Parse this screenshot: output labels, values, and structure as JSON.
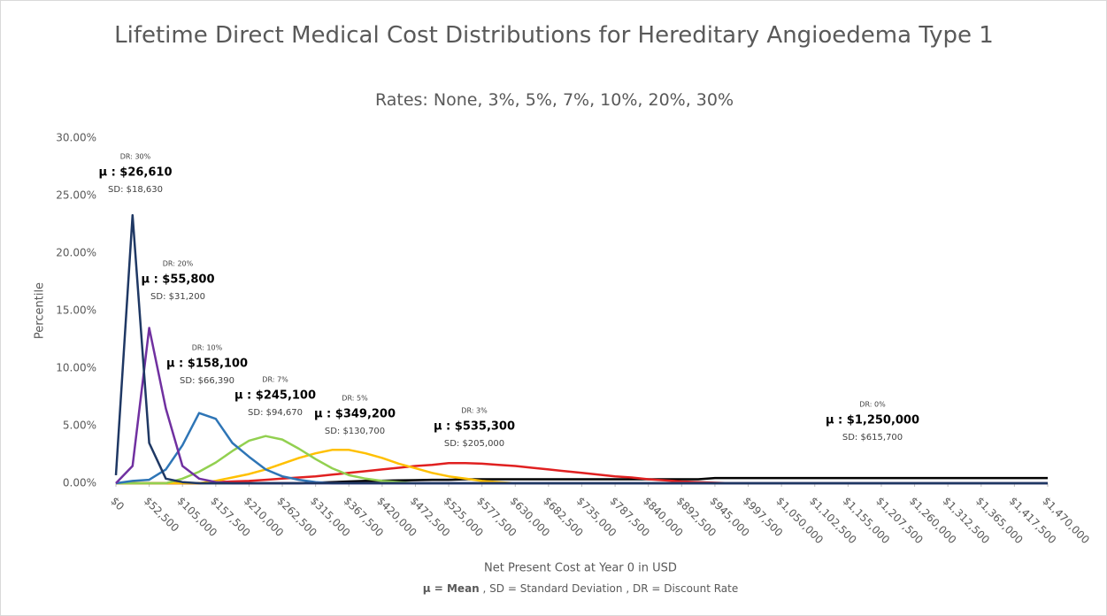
{
  "chart_data": {
    "type": "line",
    "title": "Lifetime Direct Medical Cost Distributions for Hereditary Angioedema Type 1",
    "subtitle": "Rates: None, 3%, 5%, 7%, 10%, 20%, 30%",
    "x_label": "Net Present Cost at Year 0 in USD",
    "y_label": "Percentile",
    "note": [
      "μ = Mean",
      " , SD = Standard Deviation , DR = Discount Rate"
    ],
    "x": [
      0,
      26250,
      52500,
      78750,
      105000,
      131250,
      157500,
      183750,
      210000,
      236250,
      262500,
      288750,
      315000,
      341250,
      367500,
      393750,
      420000,
      446250,
      472500,
      498750,
      525000,
      551250,
      577500,
      603750,
      630000,
      656250,
      682500,
      708750,
      735000,
      761250,
      787500,
      813750,
      840000,
      866250,
      892500,
      918750,
      945000,
      971250,
      997500,
      1023750,
      1050000,
      1076250,
      1102500,
      1128750,
      1155000,
      1181250,
      1207500,
      1233750,
      1260000,
      1286250,
      1312500,
      1338750,
      1365000,
      1391250,
      1417500,
      1443750,
      1470000
    ],
    "xlim": [
      0,
      1470000
    ],
    "xticks": [
      {
        "value": 0,
        "label": "$0"
      },
      {
        "value": 52500,
        "label": "$52,500"
      },
      {
        "value": 105000,
        "label": "$105,000"
      },
      {
        "value": 157500,
        "label": "$157,500"
      },
      {
        "value": 210000,
        "label": "$210,000"
      },
      {
        "value": 262500,
        "label": "$262,500"
      },
      {
        "value": 315000,
        "label": "$315,000"
      },
      {
        "value": 367500,
        "label": "$367,500"
      },
      {
        "value": 420000,
        "label": "$420,000"
      },
      {
        "value": 472500,
        "label": "$472,500"
      },
      {
        "value": 525000,
        "label": "$525,000"
      },
      {
        "value": 577500,
        "label": "$577,500"
      },
      {
        "value": 630000,
        "label": "$630,000"
      },
      {
        "value": 682500,
        "label": "$682,500"
      },
      {
        "value": 735000,
        "label": "$735,000"
      },
      {
        "value": 787500,
        "label": "$787,500"
      },
      {
        "value": 840000,
        "label": "$840,000"
      },
      {
        "value": 892500,
        "label": "$892,500"
      },
      {
        "value": 945000,
        "label": "$945,000"
      },
      {
        "value": 997500,
        "label": "$997,500"
      },
      {
        "value": 1050000,
        "label": "$1,050,000"
      },
      {
        "value": 1102500,
        "label": "$1,102,500"
      },
      {
        "value": 1155000,
        "label": "$1,155,000"
      },
      {
        "value": 1207500,
        "label": "$1,207,500"
      },
      {
        "value": 1260000,
        "label": "$1,260,000"
      },
      {
        "value": 1312500,
        "label": "$1,312,500"
      },
      {
        "value": 1365000,
        "label": "$1,365,000"
      },
      {
        "value": 1417500,
        "label": "$1,417,500"
      },
      {
        "value": 1470000,
        "label": "$1,470,000"
      }
    ],
    "ylim": [
      0,
      30
    ],
    "yticks": [
      {
        "value": 0,
        "label": "0.00%"
      },
      {
        "value": 5,
        "label": "5.00%"
      },
      {
        "value": 10,
        "label": "10.00%"
      },
      {
        "value": 15,
        "label": "15.00%"
      },
      {
        "value": 20,
        "label": "20.00%"
      },
      {
        "value": 25,
        "label": "25.00%"
      },
      {
        "value": 30,
        "label": "30.00%"
      }
    ],
    "grid": false,
    "series": [
      {
        "name": "DR: 30%",
        "mean_label": "μ : $26,610",
        "sd_label": "SD: $18,630",
        "color": "#1f3864",
        "values": [
          0.7,
          23.3,
          3.5,
          0.4,
          0.1,
          0,
          0,
          0,
          0,
          0,
          0,
          0,
          0,
          0,
          0,
          0,
          0,
          0,
          0,
          0,
          0,
          0,
          0,
          0,
          0,
          0,
          0,
          0,
          0,
          0,
          0,
          0,
          0,
          0,
          0,
          0,
          0,
          0,
          0,
          0,
          0,
          0,
          0,
          0,
          0,
          0,
          0,
          0,
          0,
          0,
          0,
          0,
          0,
          0,
          0,
          0,
          0
        ]
      },
      {
        "name": "DR: 20%",
        "mean_label": "μ : $55,800",
        "sd_label": "SD: $31,200",
        "color": "#7030a0",
        "values": [
          0,
          1.5,
          13.5,
          6.5,
          1.5,
          0.4,
          0.1,
          0,
          0,
          0,
          0,
          0,
          0,
          0,
          0,
          0,
          0,
          0,
          0,
          0,
          0,
          0,
          0,
          0,
          0,
          0,
          0,
          0,
          0,
          0,
          0,
          0,
          0,
          0,
          0,
          0,
          0,
          0,
          0,
          0,
          0,
          0,
          0,
          0,
          0,
          0,
          0,
          0,
          0,
          0,
          0,
          0,
          0,
          0,
          0,
          0,
          0
        ]
      },
      {
        "name": "DR: 10%",
        "mean_label": "μ : $158,100",
        "sd_label": "SD: $66,390",
        "color": "#2e75b6",
        "values": [
          0,
          0.2,
          0.3,
          1.2,
          3.3,
          6.1,
          5.6,
          3.5,
          2.3,
          1.2,
          0.6,
          0.3,
          0.1,
          0,
          0,
          0,
          0,
          0,
          0,
          0,
          0,
          0,
          0,
          0,
          0,
          0,
          0,
          0,
          0,
          0,
          0,
          0,
          0,
          0,
          0,
          0,
          0,
          0,
          0,
          0,
          0,
          0,
          0,
          0,
          0,
          0,
          0,
          0,
          0,
          0,
          0,
          0,
          0,
          0,
          0,
          0,
          0
        ]
      },
      {
        "name": "DR: 7%",
        "mean_label": "μ : $245,100",
        "sd_label": "SD: $94,670",
        "color": "#92d050",
        "values": [
          0,
          0,
          0,
          0,
          0.4,
          1.0,
          1.8,
          2.8,
          3.7,
          4.1,
          3.8,
          3.0,
          2.1,
          1.3,
          0.7,
          0.4,
          0.2,
          0.1,
          0,
          0,
          0,
          0,
          0,
          0,
          0,
          0,
          0,
          0,
          0,
          0,
          0,
          0,
          0,
          0,
          0,
          0,
          0,
          0,
          0,
          0,
          0,
          0,
          0,
          0,
          0,
          0,
          0,
          0,
          0,
          0,
          0,
          0,
          0,
          0,
          0,
          0,
          0
        ]
      },
      {
        "name": "DR: 5%",
        "mean_label": "μ : $349,200",
        "sd_label": "SD: $130,700",
        "color": "#ffc000",
        "values": [
          0,
          0,
          0,
          0,
          0,
          0,
          0.2,
          0.5,
          0.8,
          1.2,
          1.7,
          2.2,
          2.6,
          2.9,
          2.9,
          2.6,
          2.2,
          1.7,
          1.3,
          0.9,
          0.6,
          0.4,
          0.2,
          0.1,
          0,
          0,
          0,
          0,
          0,
          0,
          0,
          0,
          0,
          0,
          0,
          0,
          0,
          0,
          0,
          0,
          0,
          0,
          0,
          0,
          0,
          0,
          0,
          0,
          0,
          0,
          0,
          0,
          0,
          0,
          0,
          0,
          0
        ]
      },
      {
        "name": "DR: 3%",
        "mean_label": "μ : $535,300",
        "sd_label": "SD: $205,000",
        "color": "#e02020",
        "values": [
          0,
          0,
          0,
          0,
          0,
          0,
          0.1,
          0.15,
          0.2,
          0.3,
          0.4,
          0.5,
          0.6,
          0.75,
          0.9,
          1.05,
          1.2,
          1.35,
          1.5,
          1.6,
          1.75,
          1.75,
          1.7,
          1.6,
          1.5,
          1.35,
          1.2,
          1.05,
          0.9,
          0.75,
          0.6,
          0.5,
          0.35,
          0.25,
          0.15,
          0.1,
          0.05,
          0,
          0,
          null,
          null,
          null,
          null,
          null,
          null,
          null,
          null,
          null,
          null,
          null,
          null,
          null,
          null,
          null,
          null,
          null,
          null
        ]
      },
      {
        "name": "DR: 0%",
        "mean_label": "μ : $1,250,000",
        "sd_label": "SD: $615,700",
        "color": "#000000",
        "values": [
          0,
          0,
          0,
          0,
          0,
          0,
          0,
          0,
          0,
          0,
          0,
          0,
          0.05,
          0.1,
          0.15,
          0.2,
          0.22,
          0.25,
          0.27,
          0.3,
          0.3,
          0.35,
          0.35,
          0.35,
          0.35,
          0.35,
          0.35,
          0.35,
          0.35,
          0.35,
          0.35,
          0.35,
          0.35,
          0.35,
          0.35,
          0.35,
          0.45,
          0.45,
          0.45,
          0.45,
          0.45,
          0.45,
          0.45,
          0.45,
          0.45,
          0.45,
          0.45,
          0.45,
          0.45,
          0.45,
          0.45,
          0.45,
          0.45,
          0.45,
          0.45,
          0.45,
          0.45
        ]
      }
    ]
  }
}
